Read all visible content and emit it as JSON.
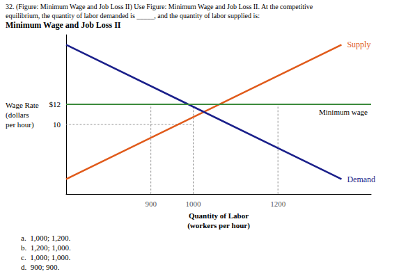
{
  "chart_data": {
    "type": "line",
    "header": [
      "32. (Figure: Minimum Wage and Job Loss II) Use Figure: Minimum Wage and Job Loss II. At the competitive",
      "equilibrium, the quantity of labor demanded is _____, and the quantity of labor supplied is:"
    ],
    "title": "Minimum Wage and Job Loss II",
    "xlabel": "Quantity of Labor\n(workers per hour)",
    "ylabel": "Wage Rate\n(dollars\nper hour)",
    "xlim": [
      700,
      1420
    ],
    "ylim": [
      3,
      19
    ],
    "xticks": [
      900,
      1000,
      1200
    ],
    "yticks": [
      {
        "value": 12,
        "label": "$12"
      },
      10
    ],
    "grid": false,
    "series": [
      {
        "name": "Supply",
        "color": "#E05A1A",
        "x": [
          700,
          1350
        ],
        "values": [
          4.5,
          18.0
        ]
      },
      {
        "name": "Demand",
        "color": "#1A1F8A",
        "x": [
          700,
          1350
        ],
        "values": [
          18.0,
          4.5
        ]
      }
    ],
    "reference_lines": [
      {
        "axis": "y",
        "value": 12,
        "label": "Minimum wage",
        "color": "#3C8A3C"
      }
    ],
    "guide_lines": {
      "color": "#888888",
      "line_style": "dotted",
      "segments": [
        {
          "x": [
            900,
            900
          ],
          "y": [
            3,
            12
          ]
        },
        {
          "x": [
            1000,
            1000
          ],
          "y": [
            3,
            12
          ]
        },
        {
          "x": [
            1200,
            1200
          ],
          "y": [
            3,
            12
          ]
        },
        {
          "x": [
            700,
            1000
          ],
          "y": [
            10,
            10
          ]
        }
      ]
    },
    "answers": [
      "a.  1,000; 1,200.",
      "b.  1,200; 1,000.",
      "c.  1,000; 1,000.",
      "d.  900; 900."
    ]
  }
}
